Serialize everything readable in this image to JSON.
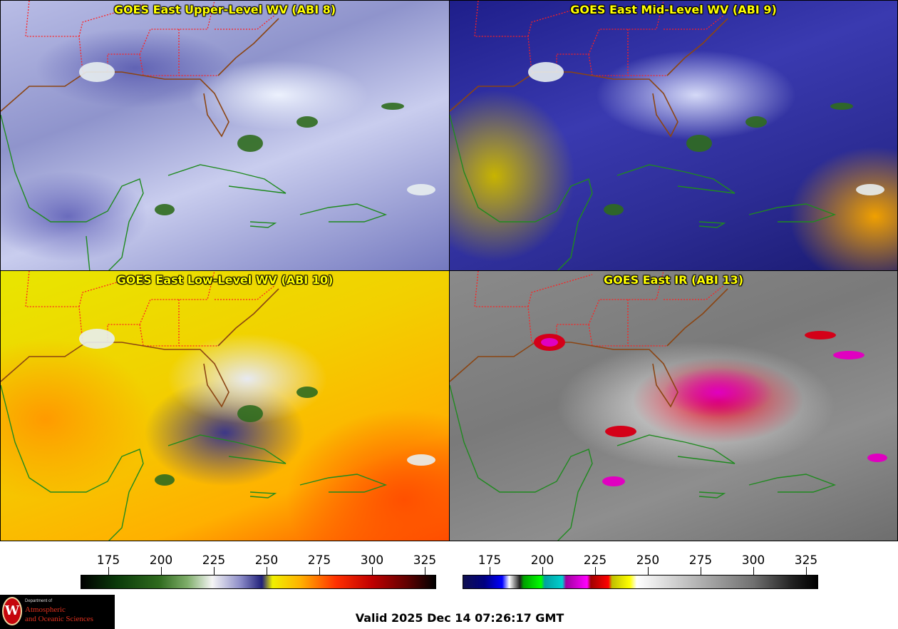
{
  "panels": [
    {
      "id": "upper",
      "title": "GOES East Upper-Level WV (ABI 8)"
    },
    {
      "id": "mid",
      "title": "GOES East Mid-Level WV (ABI 9)"
    },
    {
      "id": "low",
      "title": "GOES East Low-Level WV (ABI 10)"
    },
    {
      "id": "ir",
      "title": "GOES East IR (ABI 13)"
    }
  ],
  "colorbars": {
    "wv": {
      "ticks": [
        "175",
        "200",
        "225",
        "250",
        "275",
        "300",
        "325"
      ]
    },
    "ir": {
      "ticks": [
        "175",
        "200",
        "225",
        "250",
        "275",
        "300",
        "325"
      ]
    }
  },
  "logo": {
    "dept": "Department of",
    "line1": "Atmospheric",
    "line2": "and Oceanic Sciences",
    "seal_letter": "W"
  },
  "valid_time": "Valid 2025 Dec 14 07:26:17 GMT",
  "colors": {
    "title_text": "#ffff00",
    "state_borders": "#ff2020",
    "coastlines": "#1f8a1f",
    "us_coast": "#8b4513"
  }
}
